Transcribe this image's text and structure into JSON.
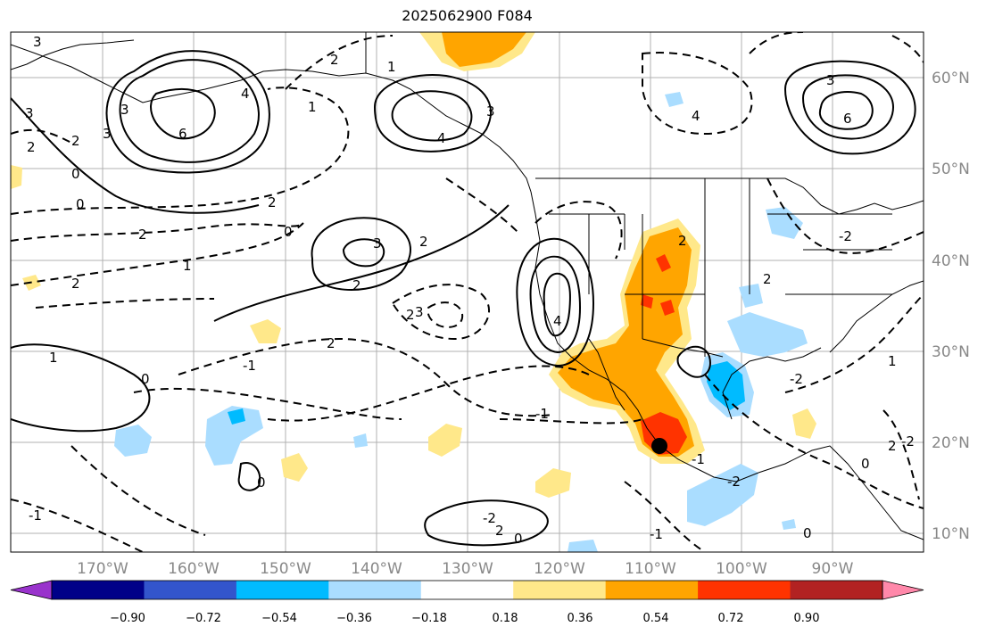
{
  "title": "2025062900 F084",
  "map": {
    "lon_labels": [
      "170°W",
      "160°W",
      "150°W",
      "140°W",
      "130°W",
      "120°W",
      "110°W",
      "100°W",
      "90°W"
    ],
    "lat_labels": [
      "60°N",
      "50°N",
      "40°N",
      "30°N",
      "20°N",
      "10°N"
    ],
    "contour_labels": [
      "3",
      "3",
      "2",
      "6",
      "3",
      "4",
      "3",
      "2",
      "0",
      "2",
      "0",
      "1",
      "2",
      "4",
      "3",
      "4",
      "3",
      "2",
      "2",
      "0",
      "2",
      "1",
      "-1",
      "1",
      "0",
      "0",
      "2",
      "2",
      "-1",
      "-2",
      "0",
      "2",
      "2",
      "3",
      "2",
      "-2",
      "-1",
      "-1",
      "2",
      "-2",
      "1",
      "0",
      "0",
      "2",
      "-1",
      "-2",
      "-2",
      "4",
      "6",
      "3",
      "1"
    ],
    "marker": "black-dot"
  },
  "colorbar": {
    "colors": [
      "#9933cc",
      "#000088",
      "#3355cc",
      "#00bbff",
      "#aaddff",
      "#ffffff",
      "#ffe88a",
      "#ffa500",
      "#ff3300",
      "#b22222",
      "#ff88aa"
    ],
    "tick_labels": [
      "−0.90",
      "−0.72",
      "−0.54",
      "−0.36",
      "−0.18",
      "0.18",
      "0.36",
      "0.54",
      "0.72",
      "0.90"
    ]
  }
}
